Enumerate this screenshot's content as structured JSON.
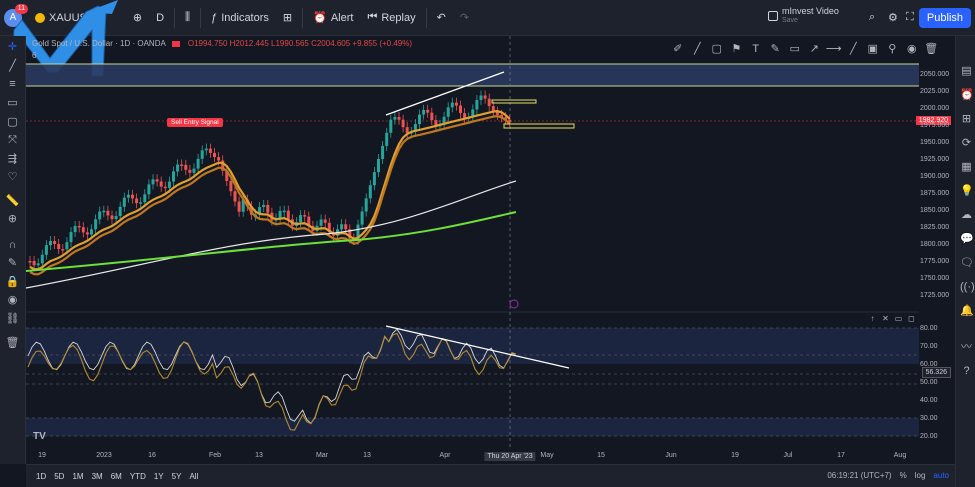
{
  "topbar": {
    "avatar_letter": "A",
    "notification_count": "11",
    "symbol": "XAUUSD",
    "interval": "D",
    "indicators_label": "Indicators",
    "alert_label": "Alert",
    "replay_label": "Replay",
    "account_name": "mInvest Video",
    "account_sub": "Save",
    "publish_label": "Publish"
  },
  "legend": {
    "title": "Gold Spot / U.S. Dollar · 1D · OANDA",
    "ohlc": "O1994.750 H2012.445 L1990.565 C2004.605 +9.855 (+0.49%)",
    "indicator_count": "6"
  },
  "price_axis": {
    "current_price": "1982.920",
    "ticks": [
      "2050.000",
      "2025.000",
      "2000.000",
      "1975.000",
      "1950.000",
      "1925.000",
      "1900.000",
      "1875.000",
      "1850.000",
      "1825.000",
      "1800.000",
      "1775.000",
      "1750.000",
      "1725.000"
    ]
  },
  "rsi_axis": {
    "current_value": "56.326",
    "ticks": [
      "80.00",
      "70.00",
      "60.00",
      "50.00",
      "40.00",
      "30.00",
      "20.00"
    ]
  },
  "time_axis": {
    "labels": [
      "19",
      "2023",
      "16",
      "Feb",
      "13",
      "Mar",
      "13",
      "Apr",
      "Thu 20 Apr '23",
      "May",
      "15",
      "Jun",
      "19",
      "Jul",
      "17",
      "Aug"
    ]
  },
  "sell_signal_label": "Sell Entry Signal",
  "bottombar": {
    "ranges": [
      "1D",
      "5D",
      "1M",
      "3M",
      "6M",
      "YTD",
      "1Y",
      "5Y",
      "All"
    ],
    "clock": "06:19:21 (UTC+7)",
    "percent": "%",
    "log": "log",
    "auto": "auto"
  },
  "colors": {
    "bull": "#26a69a",
    "bear": "#ef5350",
    "bg": "#131722",
    "accent": "#2962ff"
  }
}
